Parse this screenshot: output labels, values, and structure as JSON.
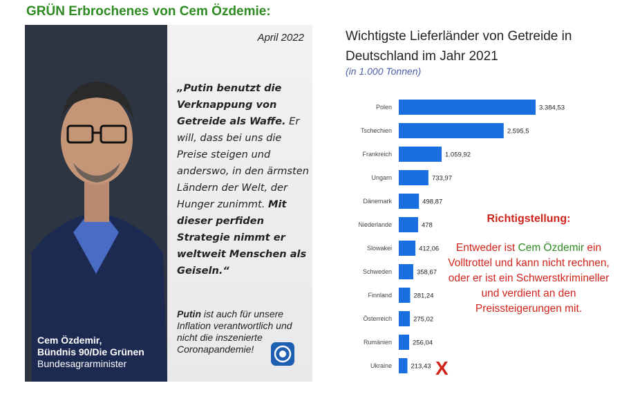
{
  "headline": "GRÜN Erbrochenes von Cem Özdemie:",
  "card": {
    "date": "April 2022",
    "quote_1": "„Putin benutzt die Verknappung von Getreide als Waffe.",
    "quote_2": " Er will, dass bei uns die Preise steigen und anderswo, in den ärmsten Ländern der Welt, der Hunger zunimmt. ",
    "quote_3": "Mit dieser perfiden Strategie nimmt er weltweit Menschen als Geiseln.“",
    "note_bold": "Putin",
    "note_rest": " ist auch für unsere Inflation verantwortlich und nicht die inszenierte Coronapandemie!",
    "caption_name": "Cem Özdemir,",
    "caption_party": "Bündnis 90/Die Grünen",
    "caption_role": "Bundesagrarminister"
  },
  "chart_data": {
    "type": "bar",
    "orientation": "horizontal",
    "title": "Wichtigste Lieferländer von Getreide in Deutschland im Jahr 2021",
    "subtitle": "(in 1.000 Tonnen)",
    "categories": [
      "Polen",
      "Tschechien",
      "Frankreich",
      "Ungarn",
      "Dänemark",
      "Niederlande",
      "Slowakei",
      "Schweden",
      "Finnland",
      "Österreich",
      "Rumänien",
      "Ukraine"
    ],
    "values": [
      3384.53,
      2595.5,
      1059.92,
      733.97,
      498.87,
      478,
      412.06,
      358.67,
      281.24,
      275.02,
      256.04,
      213.43
    ],
    "labels": [
      "3.384,53",
      "2.595,5",
      "1.059,92",
      "733,97",
      "498,87",
      "478",
      "412,06",
      "358,67",
      "281,24",
      "275,02",
      "256,04",
      "213,43"
    ],
    "bar_color": "#1a6fe0",
    "grid": false
  },
  "correction": {
    "heading": "Richtigstellung:",
    "line_1a": "Entweder ist ",
    "line_1b": "Cem Özdemir",
    "rest": "ein Volltrottel und kann nicht rechnen, oder er ist ein Schwerstkrimineller und verdient an den Preissteigerungen mit.",
    "mark": "X"
  }
}
